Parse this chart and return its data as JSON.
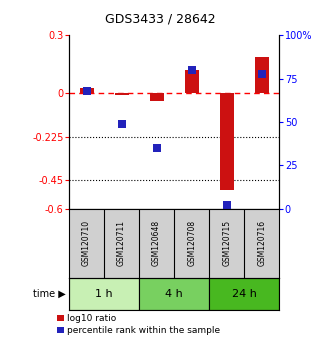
{
  "title": "GDS3433 / 28642",
  "samples": [
    "GSM120710",
    "GSM120711",
    "GSM120648",
    "GSM120708",
    "GSM120715",
    "GSM120716"
  ],
  "log10_ratio": [
    0.025,
    -0.01,
    -0.04,
    0.12,
    -0.5,
    0.19
  ],
  "percentile_rank": [
    68,
    49,
    35,
    80,
    2,
    78
  ],
  "groups": [
    {
      "label": "1 h",
      "color_inner": "#c8f0b4",
      "color_outer": "#90d870",
      "start": 0,
      "end": 2
    },
    {
      "label": "4 h",
      "color_inner": "#90d870",
      "color_outer": "#50c020",
      "start": 2,
      "end": 4
    },
    {
      "label": "24 h",
      "color_inner": "#50c020",
      "color_outer": "#28a010",
      "start": 4,
      "end": 6
    }
  ],
  "group_colors": [
    "#c8f0b4",
    "#78d060",
    "#48b820"
  ],
  "ylim_left": [
    -0.6,
    0.3
  ],
  "ylim_right": [
    0,
    100
  ],
  "yticks_left": [
    0.3,
    0.0,
    -0.225,
    -0.45,
    -0.6
  ],
  "yticks_right": [
    100,
    75,
    50,
    25,
    0
  ],
  "bar_color": "#cc1111",
  "dot_color": "#2222bb",
  "bar_width": 0.4,
  "dot_size": 35,
  "legend_items": [
    "log10 ratio",
    "percentile rank within the sample"
  ],
  "sample_bg_color": "#d0d0d0",
  "title_fontsize": 9,
  "tick_fontsize": 7,
  "label_fontsize": 6.5,
  "time_label_fontsize": 7,
  "group_label_fontsize": 8,
  "sample_fontsize": 5.5
}
